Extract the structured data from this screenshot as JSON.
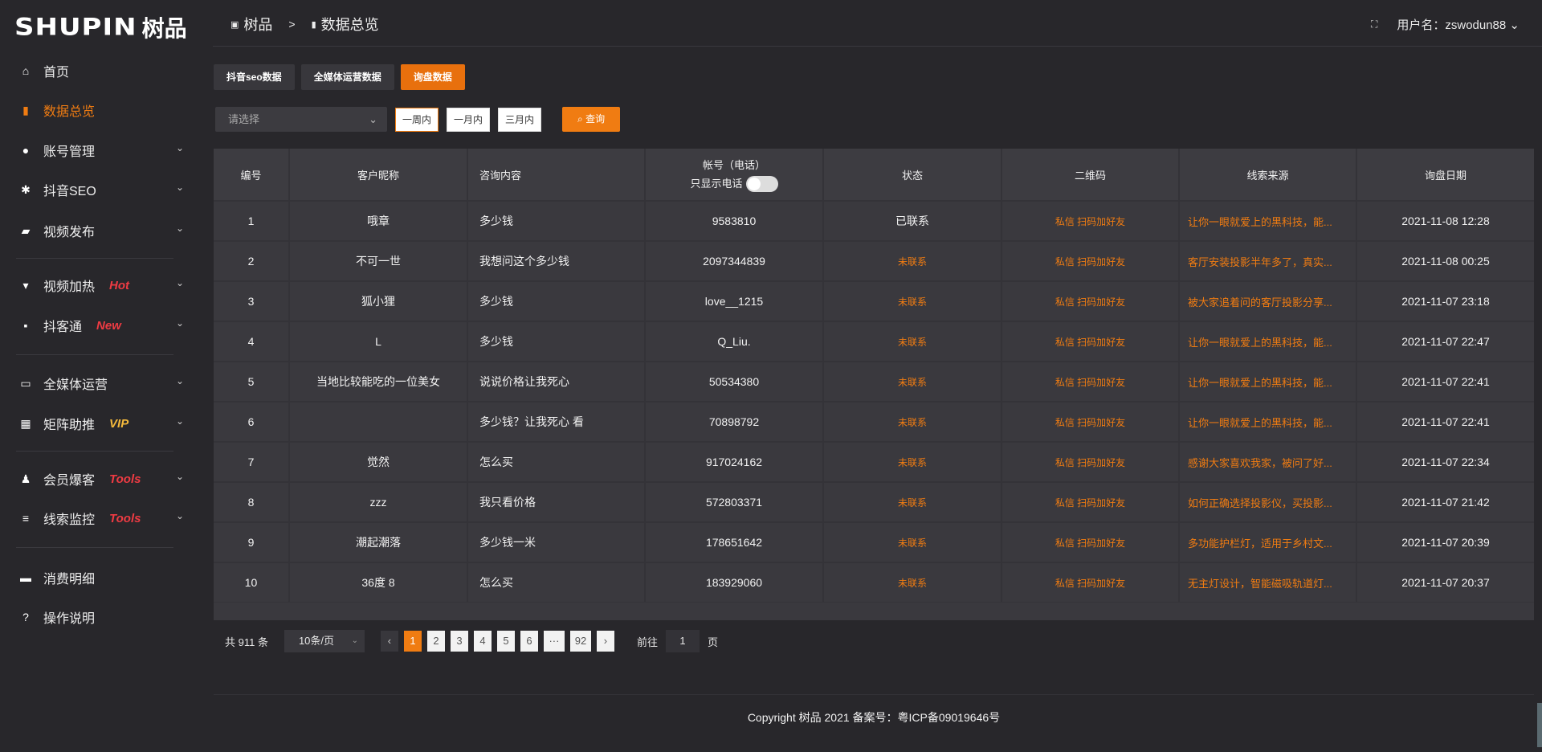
{
  "logo": {
    "en": "SHUPIN",
    "cn": "树品"
  },
  "sidebar": {
    "items": [
      {
        "label": "首页",
        "icon": "home-icon"
      },
      {
        "label": "数据总览",
        "icon": "bar-chart-icon",
        "active": true
      },
      {
        "label": "账号管理",
        "icon": "user-icon",
        "chevron": true
      },
      {
        "label": "抖音SEO",
        "icon": "gear-icon",
        "chevron": true
      },
      {
        "label": "视频发布",
        "icon": "video-icon",
        "chevron": true
      },
      {
        "label": "视频加热",
        "icon": "flame-icon",
        "badge": "Hot",
        "chevron": true
      },
      {
        "label": "抖客通",
        "icon": "chat-icon",
        "badge": "New",
        "chevron": true
      },
      {
        "label": "全媒体运营",
        "icon": "monitor-icon",
        "chevron": true
      },
      {
        "label": "矩阵助推",
        "icon": "grid-icon",
        "badge": "VIP",
        "chevron": true
      },
      {
        "label": "会员爆客",
        "icon": "member-icon",
        "badge": "Tools",
        "chevron": true
      },
      {
        "label": "线索监控",
        "icon": "sliders-icon",
        "badge": "Tools",
        "chevron": true
      },
      {
        "label": "消费明细",
        "icon": "wallet-icon"
      },
      {
        "label": "操作说明",
        "icon": "help-icon"
      }
    ]
  },
  "header": {
    "crumb_root": "树品",
    "crumb_sep": ">",
    "crumb_current": "数据总览",
    "user_label": "用户名：zswodun88"
  },
  "tabs": [
    "抖音seo数据",
    "全媒体运营数据",
    "询盘数据"
  ],
  "filter": {
    "select_placeholder": "请选择",
    "ranges": [
      "一周内",
      "一月内",
      "三月内"
    ],
    "selected_range": "一周内",
    "query": "查询"
  },
  "table": {
    "headers": [
      "编号",
      "客户昵称",
      "咨询内容",
      "帐号（电话）",
      "状态",
      "二维码",
      "线索来源",
      "询盘日期"
    ],
    "phone_toggle_label": "只显示电话",
    "phone_toggle_on": false,
    "qr_actions": "私信 扫码加好友",
    "rows": [
      {
        "id": "1",
        "name": "哦章",
        "content": "多少钱",
        "account": "9583810",
        "status": "已联系",
        "source": "让你一眼就爱上的黑科技，能...",
        "date": "2021-11-08 12:28"
      },
      {
        "id": "2",
        "name": "不可一世",
        "content": "我想问这个多少钱",
        "account": "2097344839",
        "status": "未联系",
        "source": "客厅安装投影半年多了，真实...",
        "date": "2021-11-08 00:25"
      },
      {
        "id": "3",
        "name": "狐小狸",
        "content": "多少钱",
        "account": "love__1215",
        "status": "未联系",
        "source": "被大家追着问的客厅投影分享...",
        "date": "2021-11-07 23:18"
      },
      {
        "id": "4",
        "name": "L",
        "content": "多少钱",
        "account": "Q_Liu.",
        "status": "未联系",
        "source": "让你一眼就爱上的黑科技，能...",
        "date": "2021-11-07 22:47"
      },
      {
        "id": "5",
        "name": "当地比较能吃的一位美女",
        "content": "说说价格让我死心",
        "account": "50534380",
        "status": "未联系",
        "source": "让你一眼就爱上的黑科技，能...",
        "date": "2021-11-07 22:41"
      },
      {
        "id": "6",
        "name": "",
        "content": "多少钱？让我死心 看",
        "account": "70898792",
        "status": "未联系",
        "source": "让你一眼就爱上的黑科技，能...",
        "date": "2021-11-07 22:41"
      },
      {
        "id": "7",
        "name": "觉然",
        "content": "怎么买",
        "account": "917024162",
        "status": "未联系",
        "source": "感谢大家喜欢我家，被问了好...",
        "date": "2021-11-07 22:34"
      },
      {
        "id": "8",
        "name": "zzz",
        "content": "我只看价格",
        "account": "572803371",
        "status": "未联系",
        "source": "如何正确选择投影仪，买投影...",
        "date": "2021-11-07 21:42"
      },
      {
        "id": "9",
        "name": "潮起潮落",
        "content": "多少钱一米",
        "account": "178651642",
        "status": "未联系",
        "source": "多功能护栏灯，适用于乡村文...",
        "date": "2021-11-07 20:39"
      },
      {
        "id": "10",
        "name": "36度 8",
        "content": "怎么买",
        "account": "183929060",
        "status": "未联系",
        "source": "无主灯设计，智能磁吸轨道灯...",
        "date": "2021-11-07 20:37"
      }
    ]
  },
  "pagination": {
    "total": "共 911 条",
    "page_size": "10条/页",
    "pages": [
      "1",
      "2",
      "3",
      "4",
      "5",
      "6",
      "···",
      "92"
    ],
    "current": "1",
    "goto_label": "前往",
    "goto_value": "1",
    "page_unit": "页"
  },
  "footer": {
    "copyright": "Copyright 树品 2021 备案号：粤ICP备09019646号"
  },
  "colors": {
    "accent": "#f07c12",
    "badge_red": "#ef3b43",
    "badge_gold": "#f4b93c",
    "bg": "#28272b",
    "table": "#3a393e"
  }
}
